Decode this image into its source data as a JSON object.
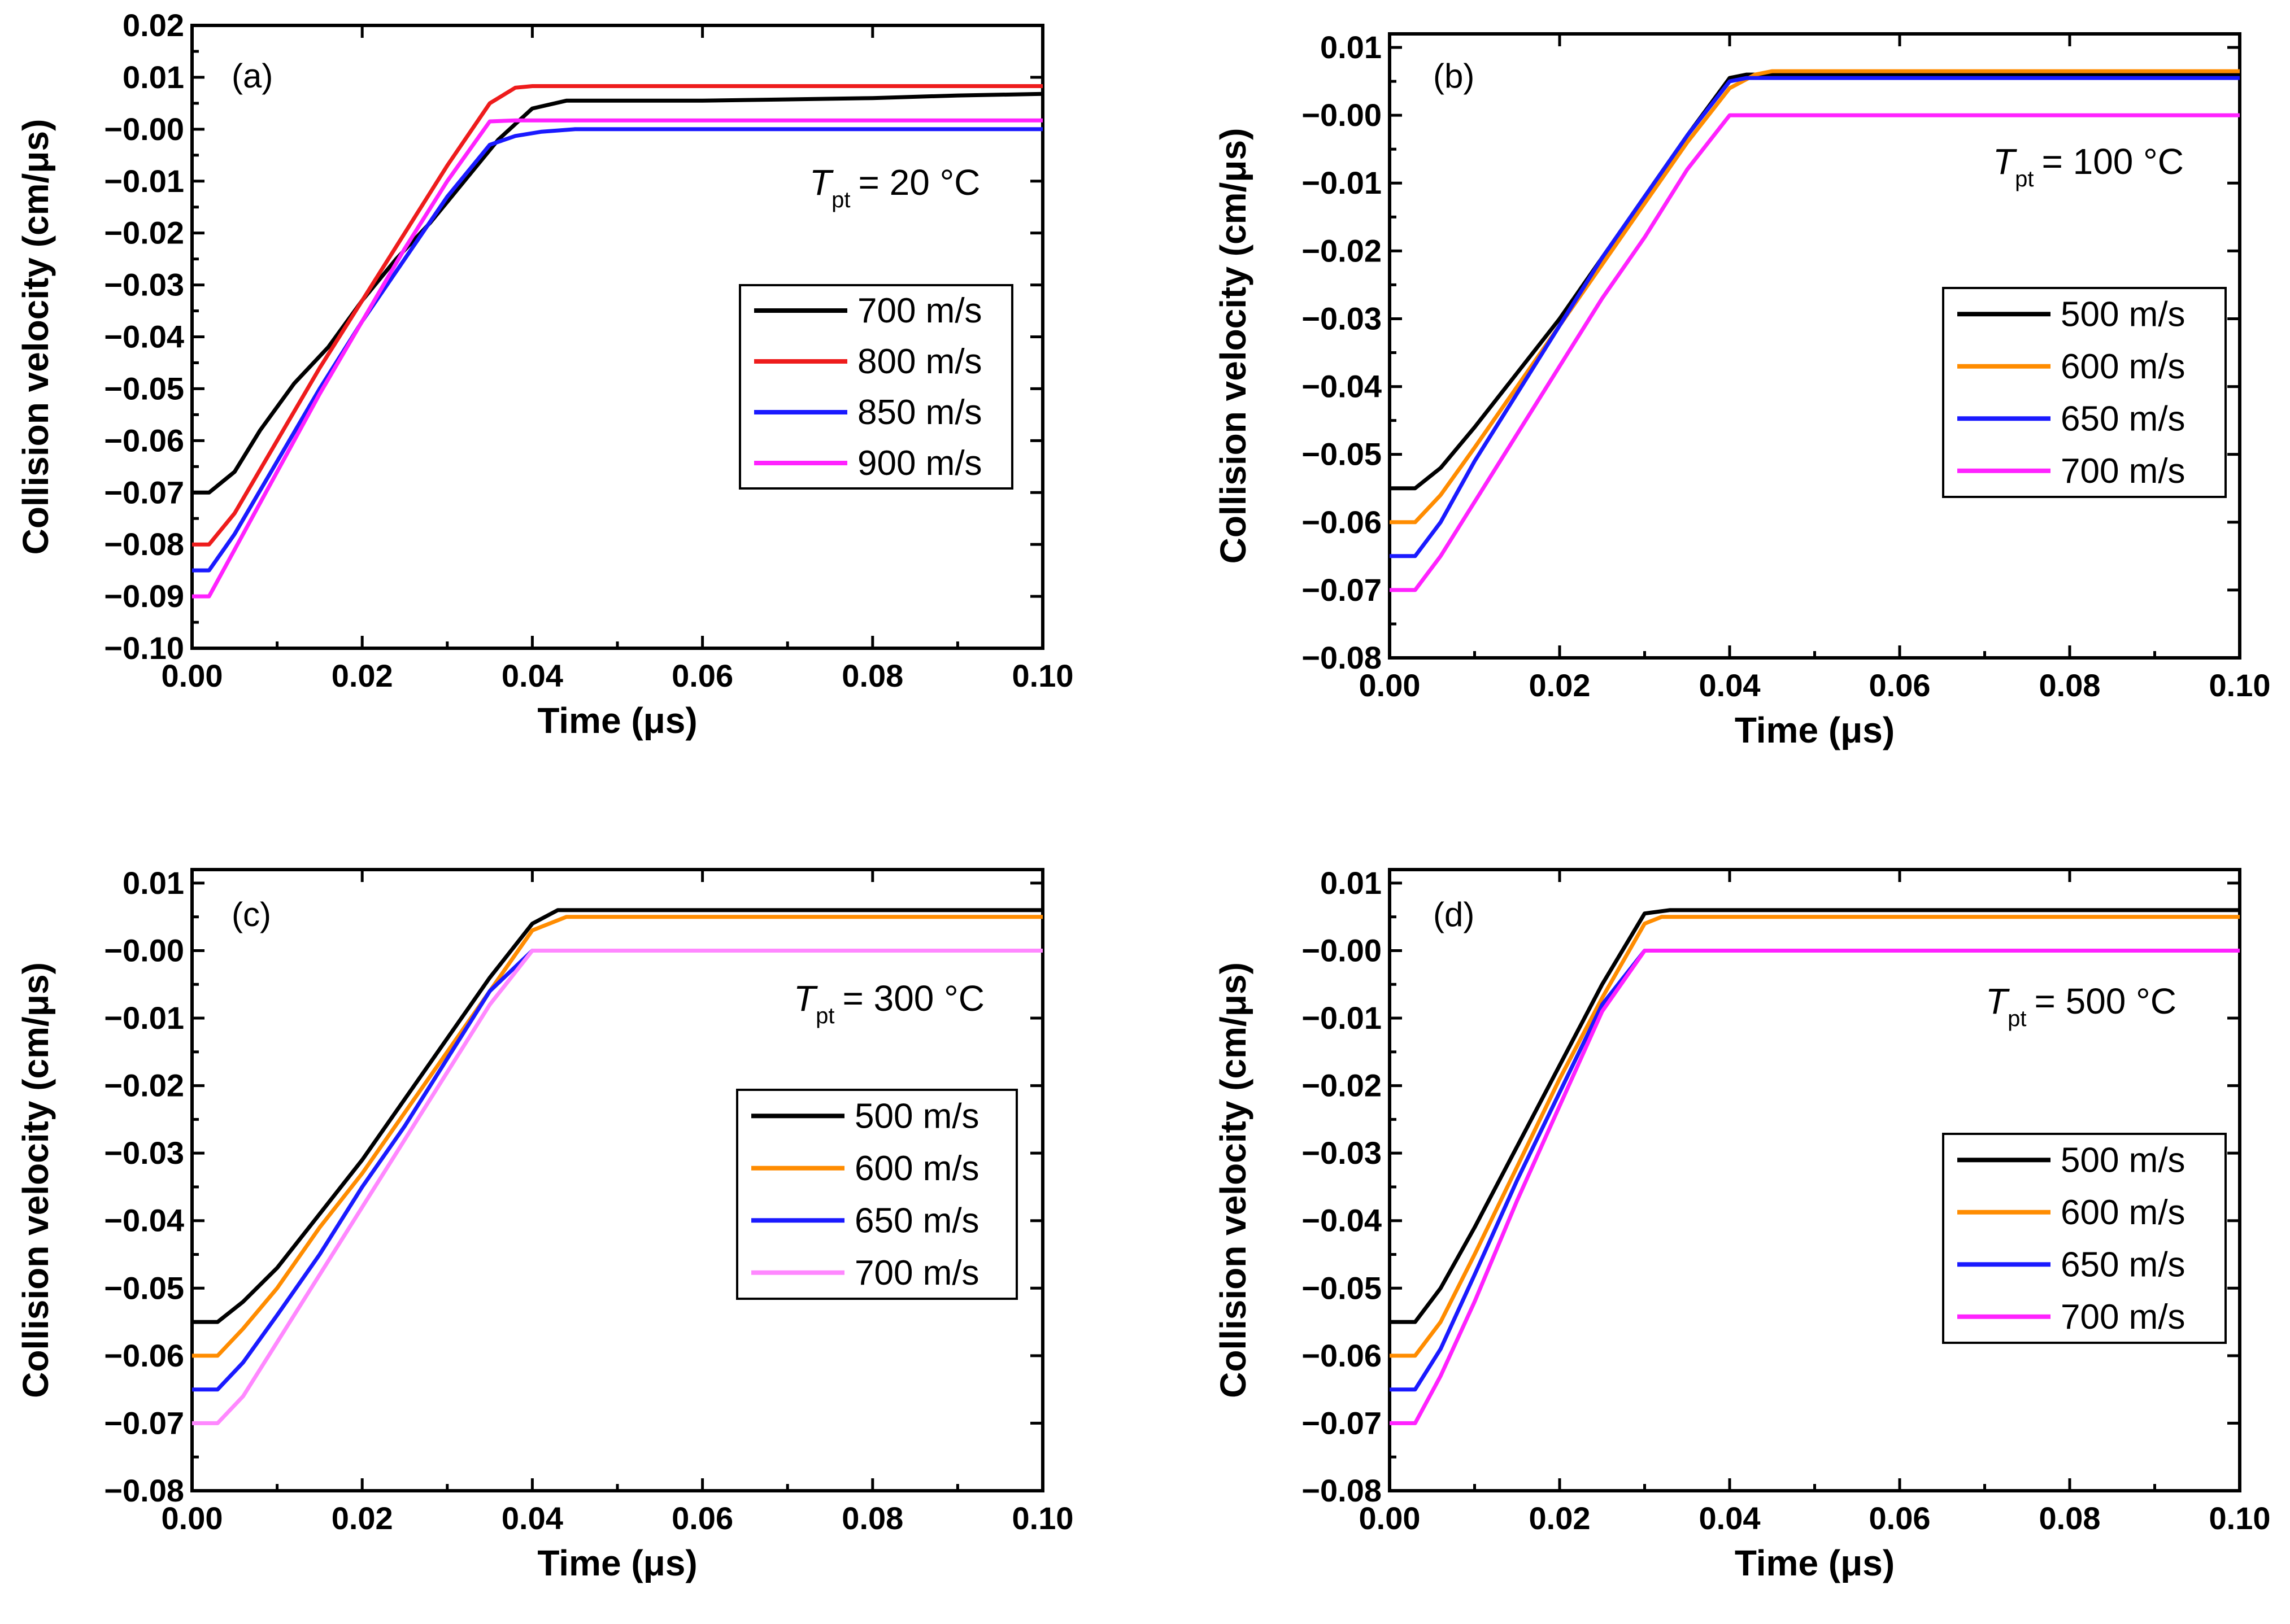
{
  "chart_data": [
    {
      "type": "line",
      "panel_label": "(a)",
      "temperature": {
        "symbol": "T",
        "subscript": "pt",
        "value": "= 20 °C"
      },
      "xlabel": "Time (μs)",
      "ylabel": "Collision velocity (cm/μs)",
      "xlim": [
        0,
        0.1
      ],
      "ylim": [
        -0.1,
        0.02
      ],
      "xticks": [
        0,
        0.02,
        0.04,
        0.06,
        0.08,
        0.1
      ],
      "xtick_labels": [
        "0.00",
        "0.02",
        "0.04",
        "0.06",
        "0.08",
        "0.10"
      ],
      "yticks": [
        0.02,
        0.01,
        0.0,
        -0.01,
        -0.02,
        -0.03,
        -0.04,
        -0.05,
        -0.06,
        -0.07,
        -0.08,
        -0.09,
        -0.1
      ],
      "ytick_labels": [
        "0.02",
        "0.01",
        "−0.00",
        "−0.01",
        "−0.02",
        "−0.03",
        "−0.04",
        "−0.05",
        "−0.06",
        "−0.07",
        "−0.08",
        "−0.09",
        "−0.10"
      ],
      "legend_position": "middle-right",
      "series": [
        {
          "name": "700 m/s",
          "color": "#000000",
          "x": [
            0,
            0.002,
            0.005,
            0.008,
            0.012,
            0.016,
            0.02,
            0.024,
            0.028,
            0.032,
            0.036,
            0.04,
            0.044,
            0.06,
            0.08,
            0.09,
            0.1
          ],
          "y": [
            -0.07,
            -0.07,
            -0.066,
            -0.058,
            -0.049,
            -0.042,
            -0.033,
            -0.025,
            -0.018,
            -0.01,
            -0.002,
            0.004,
            0.0055,
            0.0055,
            0.006,
            0.0065,
            0.0068
          ]
        },
        {
          "name": "800 m/s",
          "color": "#ee1c1c",
          "x": [
            0,
            0.002,
            0.005,
            0.01,
            0.015,
            0.02,
            0.025,
            0.03,
            0.035,
            0.038,
            0.04,
            0.06,
            0.08,
            0.1
          ],
          "y": [
            -0.08,
            -0.08,
            -0.074,
            -0.06,
            -0.046,
            -0.033,
            -0.02,
            -0.007,
            0.005,
            0.008,
            0.0083,
            0.0083,
            0.0083,
            0.0083
          ]
        },
        {
          "name": "850 m/s",
          "color": "#1a1aff",
          "x": [
            0,
            0.002,
            0.005,
            0.01,
            0.015,
            0.02,
            0.025,
            0.03,
            0.035,
            0.038,
            0.041,
            0.045,
            0.06,
            0.08,
            0.1
          ],
          "y": [
            -0.085,
            -0.085,
            -0.078,
            -0.064,
            -0.05,
            -0.037,
            -0.025,
            -0.013,
            -0.003,
            -0.0013,
            -0.0005,
            0.0,
            0.0,
            0.0,
            0.0
          ]
        },
        {
          "name": "900 m/s",
          "color": "#ff22ff",
          "x": [
            0,
            0.002,
            0.005,
            0.01,
            0.015,
            0.02,
            0.025,
            0.03,
            0.035,
            0.038,
            0.06,
            0.08,
            0.1
          ],
          "y": [
            -0.09,
            -0.09,
            -0.081,
            -0.066,
            -0.051,
            -0.037,
            -0.023,
            -0.01,
            0.0015,
            0.0017,
            0.0017,
            0.0017,
            0.0017
          ]
        }
      ]
    },
    {
      "type": "line",
      "panel_label": "(b)",
      "temperature": {
        "symbol": "T",
        "subscript": "pt",
        "value": "= 100 °C"
      },
      "xlabel": "Time (μs)",
      "ylabel": "Collision velocity (cm/μs)",
      "xlim": [
        0,
        0.1
      ],
      "ylim": [
        -0.08,
        0.012
      ],
      "xticks": [
        0,
        0.02,
        0.04,
        0.06,
        0.08,
        0.1
      ],
      "xtick_labels": [
        "0.00",
        "0.02",
        "0.04",
        "0.06",
        "0.08",
        "0.10"
      ],
      "yticks": [
        0.01,
        0.0,
        -0.01,
        -0.02,
        -0.03,
        -0.04,
        -0.05,
        -0.06,
        -0.07,
        -0.08
      ],
      "ytick_labels": [
        "0.01",
        "−0.00",
        "−0.01",
        "−0.02",
        "−0.03",
        "−0.04",
        "−0.05",
        "−0.06",
        "−0.07",
        "−0.08"
      ],
      "legend_position": "middle-right",
      "series": [
        {
          "name": "500 m/s",
          "color": "#000000",
          "x": [
            0,
            0.003,
            0.006,
            0.01,
            0.015,
            0.02,
            0.025,
            0.03,
            0.035,
            0.04,
            0.042,
            0.045,
            0.06,
            0.08,
            0.1
          ],
          "y": [
            -0.055,
            -0.055,
            -0.052,
            -0.046,
            -0.038,
            -0.03,
            -0.021,
            -0.012,
            -0.003,
            0.0055,
            0.006,
            0.006,
            0.006,
            0.006,
            0.006
          ]
        },
        {
          "name": "600 m/s",
          "color": "#ff8c00",
          "x": [
            0,
            0.003,
            0.006,
            0.01,
            0.015,
            0.02,
            0.025,
            0.03,
            0.035,
            0.04,
            0.043,
            0.045,
            0.06,
            0.08,
            0.1
          ],
          "y": [
            -0.06,
            -0.06,
            -0.056,
            -0.049,
            -0.04,
            -0.031,
            -0.022,
            -0.013,
            -0.004,
            0.004,
            0.006,
            0.0065,
            0.0065,
            0.0065,
            0.0065
          ]
        },
        {
          "name": "650 m/s",
          "color": "#1a1aff",
          "x": [
            0,
            0.003,
            0.006,
            0.01,
            0.015,
            0.02,
            0.025,
            0.03,
            0.035,
            0.04,
            0.042,
            0.06,
            0.08,
            0.1
          ],
          "y": [
            -0.065,
            -0.065,
            -0.06,
            -0.051,
            -0.041,
            -0.031,
            -0.021,
            -0.012,
            -0.003,
            0.005,
            0.0055,
            0.0055,
            0.0055,
            0.0055
          ]
        },
        {
          "name": "700 m/s",
          "color": "#ff22ff",
          "x": [
            0,
            0.003,
            0.006,
            0.01,
            0.015,
            0.02,
            0.025,
            0.03,
            0.035,
            0.04,
            0.06,
            0.08,
            0.1
          ],
          "y": [
            -0.07,
            -0.07,
            -0.065,
            -0.057,
            -0.047,
            -0.037,
            -0.027,
            -0.018,
            -0.008,
            0.0,
            0.0,
            0.0,
            0.0
          ]
        }
      ]
    },
    {
      "type": "line",
      "panel_label": "(c)",
      "temperature": {
        "symbol": "T",
        "subscript": "pt",
        "value": "= 300 °C"
      },
      "xlabel": "Time (μs)",
      "ylabel": "Collision velocity (cm/μs)",
      "xlim": [
        0,
        0.1
      ],
      "ylim": [
        -0.08,
        0.012
      ],
      "xticks": [
        0,
        0.02,
        0.04,
        0.06,
        0.08,
        0.1
      ],
      "xtick_labels": [
        "0.00",
        "0.02",
        "0.04",
        "0.06",
        "0.08",
        "0.10"
      ],
      "yticks": [
        0.01,
        0.0,
        -0.01,
        -0.02,
        -0.03,
        -0.04,
        -0.05,
        -0.06,
        -0.07,
        -0.08
      ],
      "ytick_labels": [
        "0.01",
        "−0.00",
        "−0.01",
        "−0.02",
        "−0.03",
        "−0.04",
        "−0.05",
        "−0.06",
        "−0.07",
        "−0.08"
      ],
      "legend_position": "middle-right",
      "series": [
        {
          "name": "500 m/s",
          "color": "#000000",
          "x": [
            0,
            0.003,
            0.006,
            0.01,
            0.015,
            0.02,
            0.025,
            0.03,
            0.035,
            0.04,
            0.043,
            0.06,
            0.08,
            0.1
          ],
          "y": [
            -0.055,
            -0.055,
            -0.052,
            -0.047,
            -0.039,
            -0.031,
            -0.022,
            -0.013,
            -0.004,
            0.004,
            0.006,
            0.006,
            0.006,
            0.006
          ]
        },
        {
          "name": "600 m/s",
          "color": "#ff8c00",
          "x": [
            0,
            0.003,
            0.006,
            0.01,
            0.015,
            0.02,
            0.025,
            0.03,
            0.035,
            0.04,
            0.044,
            0.06,
            0.08,
            0.1
          ],
          "y": [
            -0.06,
            -0.06,
            -0.056,
            -0.05,
            -0.041,
            -0.033,
            -0.024,
            -0.015,
            -0.006,
            0.003,
            0.005,
            0.005,
            0.005,
            0.005
          ]
        },
        {
          "name": "650 m/s",
          "color": "#1a1aff",
          "x": [
            0,
            0.003,
            0.006,
            0.01,
            0.015,
            0.02,
            0.025,
            0.03,
            0.035,
            0.04,
            0.06,
            0.08,
            0.1
          ],
          "y": [
            -0.065,
            -0.065,
            -0.061,
            -0.054,
            -0.045,
            -0.035,
            -0.026,
            -0.016,
            -0.006,
            0.0,
            0.0,
            0.0,
            0.0
          ]
        },
        {
          "name": "700 m/s",
          "color": "#ff88ff",
          "x": [
            0,
            0.003,
            0.006,
            0.01,
            0.015,
            0.02,
            0.025,
            0.03,
            0.035,
            0.04,
            0.06,
            0.08,
            0.1
          ],
          "y": [
            -0.07,
            -0.07,
            -0.066,
            -0.058,
            -0.048,
            -0.038,
            -0.028,
            -0.018,
            -0.008,
            0.0,
            0.0,
            0.0,
            0.0
          ]
        }
      ]
    },
    {
      "type": "line",
      "panel_label": "(d)",
      "temperature": {
        "symbol": "T",
        "subscript": "pt",
        "value": "= 500 °C"
      },
      "xlabel": "Time (μs)",
      "ylabel": "Collision velocity (cm/μs)",
      "xlim": [
        0,
        0.1
      ],
      "ylim": [
        -0.08,
        0.012
      ],
      "xticks": [
        0,
        0.02,
        0.04,
        0.06,
        0.08,
        0.1
      ],
      "xtick_labels": [
        "0.00",
        "0.02",
        "0.04",
        "0.06",
        "0.08",
        "0.10"
      ],
      "yticks": [
        0.01,
        0.0,
        -0.01,
        -0.02,
        -0.03,
        -0.04,
        -0.05,
        -0.06,
        -0.07,
        -0.08
      ],
      "ytick_labels": [
        "0.01",
        "−0.00",
        "−0.01",
        "−0.02",
        "−0.03",
        "−0.04",
        "−0.05",
        "−0.06",
        "−0.07",
        "−0.08"
      ],
      "legend_position": "middle-right",
      "series": [
        {
          "name": "500 m/s",
          "color": "#000000",
          "x": [
            0,
            0.003,
            0.006,
            0.01,
            0.015,
            0.02,
            0.025,
            0.03,
            0.033,
            0.06,
            0.08,
            0.1
          ],
          "y": [
            -0.055,
            -0.055,
            -0.05,
            -0.041,
            -0.029,
            -0.017,
            -0.005,
            0.0055,
            0.006,
            0.006,
            0.006,
            0.006
          ]
        },
        {
          "name": "600 m/s",
          "color": "#ff8c00",
          "x": [
            0,
            0.003,
            0.006,
            0.01,
            0.015,
            0.02,
            0.025,
            0.03,
            0.032,
            0.06,
            0.08,
            0.1
          ],
          "y": [
            -0.06,
            -0.06,
            -0.055,
            -0.045,
            -0.032,
            -0.019,
            -0.007,
            0.004,
            0.005,
            0.005,
            0.005,
            0.005
          ]
        },
        {
          "name": "650 m/s",
          "color": "#1a1aff",
          "x": [
            0,
            0.003,
            0.006,
            0.01,
            0.015,
            0.02,
            0.025,
            0.03,
            0.06,
            0.08,
            0.1
          ],
          "y": [
            -0.065,
            -0.065,
            -0.059,
            -0.048,
            -0.034,
            -0.021,
            -0.008,
            0.0,
            0.0,
            0.0,
            0.0
          ]
        },
        {
          "name": "700 m/s",
          "color": "#ff22ff",
          "x": [
            0,
            0.003,
            0.006,
            0.01,
            0.015,
            0.02,
            0.025,
            0.03,
            0.06,
            0.08,
            0.1
          ],
          "y": [
            -0.07,
            -0.07,
            -0.063,
            -0.052,
            -0.037,
            -0.023,
            -0.009,
            0.0,
            0.0,
            0.0,
            0.0
          ]
        }
      ]
    }
  ]
}
